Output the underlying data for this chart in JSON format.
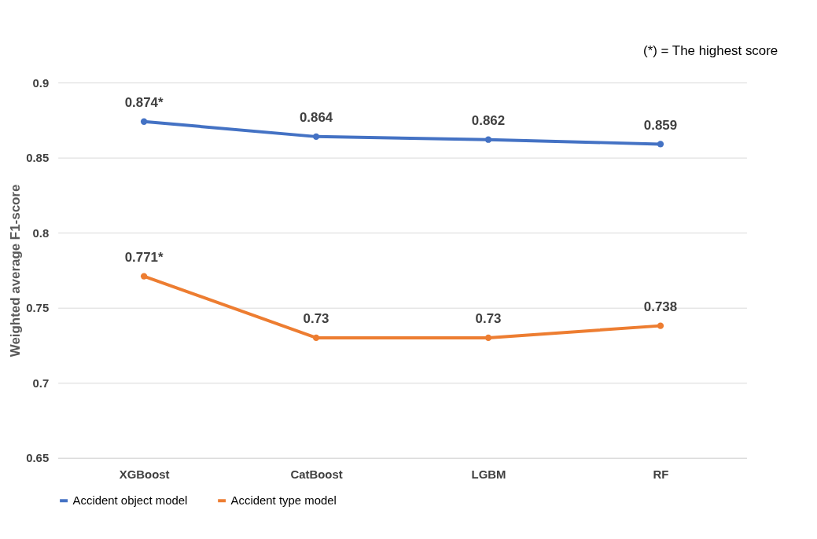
{
  "chart_data": {
    "type": "line",
    "ylabel": "Weighted average F1-score",
    "categories": [
      "XGBoost",
      "CatBoost",
      "LGBM",
      "RF"
    ],
    "series": [
      {
        "name": "Accident object model",
        "color": "#4472c4",
        "values": [
          0.874,
          0.864,
          0.862,
          0.859
        ],
        "value_labels": [
          "0.874*",
          "0.864",
          "0.862",
          "0.859"
        ]
      },
      {
        "name": "Accident type model",
        "color": "#ed7d31",
        "values": [
          0.771,
          0.73,
          0.73,
          0.738
        ],
        "value_labels": [
          "0.771*",
          "0.73",
          "0.73",
          "0.738"
        ]
      }
    ],
    "ylim": [
      0.65,
      0.9
    ],
    "yticks": [
      0.65,
      0.7,
      0.75,
      0.8,
      0.85,
      0.9
    ],
    "grid": "y",
    "legend": "bottom",
    "marker": "circle",
    "line_style": "solid",
    "annotations": [
      "(*) = The highest score"
    ]
  }
}
